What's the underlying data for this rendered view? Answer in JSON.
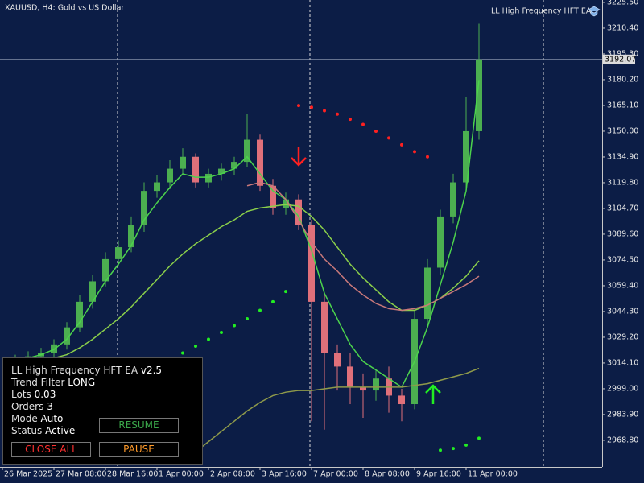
{
  "header": {
    "symbol": "XAUUSD, H4:  Gold vs US Dollar",
    "ea_name": "LL High Frequency HFT EA"
  },
  "chart_data": {
    "type": "candlestick",
    "x": [
      0,
      1,
      2,
      3,
      4,
      5,
      6,
      7,
      8,
      9,
      10,
      11,
      12,
      13,
      14,
      15,
      16,
      17,
      18,
      19,
      20,
      21,
      22,
      23,
      24,
      25,
      26,
      27,
      28,
      29,
      30,
      31,
      32,
      33,
      34,
      35,
      36
    ],
    "open": [
      3015,
      3016,
      3018,
      3020,
      3025,
      3035,
      3050,
      3062,
      3075,
      3082,
      3095,
      3115,
      3120,
      3128,
      3135,
      3120,
      3125,
      3128,
      3132,
      3145,
      3118,
      3105,
      3110,
      3095,
      3050,
      3020,
      3012,
      3000,
      2998,
      3005,
      2995,
      2990,
      3040,
      3070,
      3100,
      3120,
      3150
    ],
    "high": [
      3019,
      3021,
      3023,
      3028,
      3038,
      3054,
      3066,
      3079,
      3086,
      3100,
      3120,
      3124,
      3133,
      3140,
      3137,
      3128,
      3131,
      3135,
      3160,
      3148,
      3122,
      3114,
      3113,
      3098,
      3055,
      3025,
      3020,
      3008,
      3010,
      3012,
      2999,
      3045,
      3075,
      3104,
      3125,
      3170,
      3213
    ],
    "low": [
      3011,
      3012,
      3015,
      3017,
      3022,
      3032,
      3046,
      3059,
      3071,
      3079,
      3091,
      3111,
      3116,
      3124,
      3117,
      3117,
      3121,
      3124,
      3129,
      3115,
      3101,
      3101,
      3092,
      2980,
      2975,
      2998,
      2990,
      2982,
      2992,
      2985,
      2980,
      2987,
      3036,
      3066,
      3096,
      3115,
      3145
    ],
    "close": [
      3016,
      3018,
      3020,
      3025,
      3035,
      3050,
      3062,
      3075,
      3082,
      3095,
      3115,
      3120,
      3128,
      3135,
      3120,
      3125,
      3128,
      3132,
      3145,
      3118,
      3105,
      3110,
      3095,
      3050,
      3020,
      3012,
      3000,
      2998,
      3005,
      2995,
      2990,
      3040,
      3070,
      3100,
      3120,
      3150,
      3192.07
    ],
    "up_color": "#4caf50",
    "down_color": "#e0707a",
    "lines": [
      {
        "color": "#4cd34c",
        "values": [
          3016,
          3017,
          3019,
          3022,
          3028,
          3038,
          3050,
          3062,
          3072,
          3083,
          3098,
          3108,
          3117,
          3125,
          3123,
          3123,
          3125,
          3128,
          3135,
          3125,
          3115,
          3110,
          3100,
          3080,
          3055,
          3040,
          3025,
          3015,
          3010,
          3005,
          3000,
          3015,
          3035,
          3060,
          3085,
          3115,
          3180
        ]
      },
      {
        "color": "#8bd04a",
        "values": [
          3015,
          3015,
          3016,
          3017,
          3019,
          3023,
          3028,
          3034,
          3040,
          3047,
          3055,
          3063,
          3071,
          3078,
          3084,
          3089,
          3094,
          3098,
          3103,
          3105,
          3106,
          3107,
          3106,
          3100,
          3092,
          3082,
          3072,
          3064,
          3057,
          3050,
          3045,
          3045,
          3048,
          3052,
          3058,
          3065,
          3074
        ]
      },
      {
        "color": "#c8787a",
        "values": [
          null,
          null,
          null,
          null,
          null,
          null,
          null,
          null,
          null,
          null,
          null,
          null,
          null,
          null,
          null,
          null,
          null,
          null,
          3118,
          3120,
          3118,
          3110,
          3098,
          3085,
          3075,
          3068,
          3060,
          3054,
          3049,
          3046,
          3045,
          3046,
          3048,
          3052,
          3056,
          3060,
          3065
        ]
      },
      {
        "color": "#8f9a4a",
        "values": [
          null,
          null,
          null,
          null,
          null,
          null,
          null,
          null,
          null,
          null,
          null,
          null,
          null,
          null,
          2962,
          2968,
          2974,
          2980,
          2986,
          2991,
          2995,
          2997,
          2998,
          2998,
          2999,
          3000,
          3000,
          3000,
          3000,
          3000,
          3000,
          3001,
          3002,
          3004,
          3006,
          3008,
          3011
        ]
      }
    ],
    "dots": [
      {
        "color": "#ff2020",
        "x": [
          22,
          23,
          24,
          25,
          26,
          27,
          28,
          29,
          30,
          31,
          32
        ],
        "values": [
          3165,
          3164,
          3162,
          3160,
          3157,
          3154,
          3150,
          3146,
          3142,
          3138,
          3135
        ]
      },
      {
        "color": "#22ee22",
        "x": [
          12,
          13,
          14,
          15,
          16,
          17,
          18,
          19,
          20,
          21
        ],
        "values": [
          3016,
          3020,
          3024,
          3028,
          3032,
          3036,
          3040,
          3045,
          3050,
          3056
        ]
      },
      {
        "color": "#22ee22",
        "x": [
          33,
          34,
          35,
          36
        ],
        "values": [
          2963,
          2964,
          2966,
          2970
        ]
      }
    ],
    "current_price": 3192.07,
    "ylim": [
      2953.2,
      3226.9
    ],
    "xlim": [
      -1.1875,
      45.5625
    ],
    "yticks": [
      {
        "value": 3225.5,
        "label": "3225.50"
      },
      {
        "value": 3210.4,
        "label": "3210.40"
      },
      {
        "value": 3195.3,
        "label": "3195.30"
      },
      {
        "value": 3180.2,
        "label": "3180.20"
      },
      {
        "value": 3165.1,
        "label": "3165.10"
      },
      {
        "value": 3150,
        "label": "3150.00"
      },
      {
        "value": 3134.9,
        "label": "3134.90"
      },
      {
        "value": 3119.8,
        "label": "3119.80"
      },
      {
        "value": 3104.7,
        "label": "3104.70"
      },
      {
        "value": 3089.6,
        "label": "3089.60"
      },
      {
        "value": 3074.5,
        "label": "3074.50"
      },
      {
        "value": 3059.4,
        "label": "3059.40"
      },
      {
        "value": 3044.3,
        "label": "3044.30"
      },
      {
        "value": 3029.2,
        "label": "3029.20"
      },
      {
        "value": 3014.1,
        "label": "3014.10"
      },
      {
        "value": 2999,
        "label": "2999.00"
      },
      {
        "value": 2983.9,
        "label": "2983.90"
      },
      {
        "value": 2968.8,
        "label": "2968.80"
      }
    ],
    "xticks": [
      {
        "value": -1,
        "label": "26 Mar 2025"
      },
      {
        "value": 3,
        "label": "27 Mar 08:00"
      },
      {
        "value": 7,
        "label": "28 Mar 16:00"
      },
      {
        "value": 11,
        "label": "1 Apr 00:00"
      },
      {
        "value": 15,
        "label": "2 Apr 08:00"
      },
      {
        "value": 19,
        "label": "3 Apr 16:00"
      },
      {
        "value": 23,
        "label": "7 Apr 00:00"
      },
      {
        "value": 27,
        "label": "8 Apr 08:00"
      },
      {
        "value": 31,
        "label": "9 Apr 16:00"
      },
      {
        "value": 35,
        "label": "11 Apr 00:00"
      }
    ],
    "separators": [
      7.9375,
      22.875,
      41
    ]
  },
  "panel": {
    "title": "LL High Frequency HFT EA",
    "version": "v2.5",
    "rows": [
      {
        "label": "Trend Filter",
        "value": "LONG"
      },
      {
        "label": "Lots",
        "value": "0.03"
      },
      {
        "label": "Orders",
        "value": "3"
      },
      {
        "label": "Mode",
        "value": "Auto"
      },
      {
        "label": "Status",
        "value": "Active"
      }
    ],
    "buttons": {
      "resume": "RESUME",
      "close_all": "CLOSE ALL",
      "pause": "PAUSE"
    }
  }
}
